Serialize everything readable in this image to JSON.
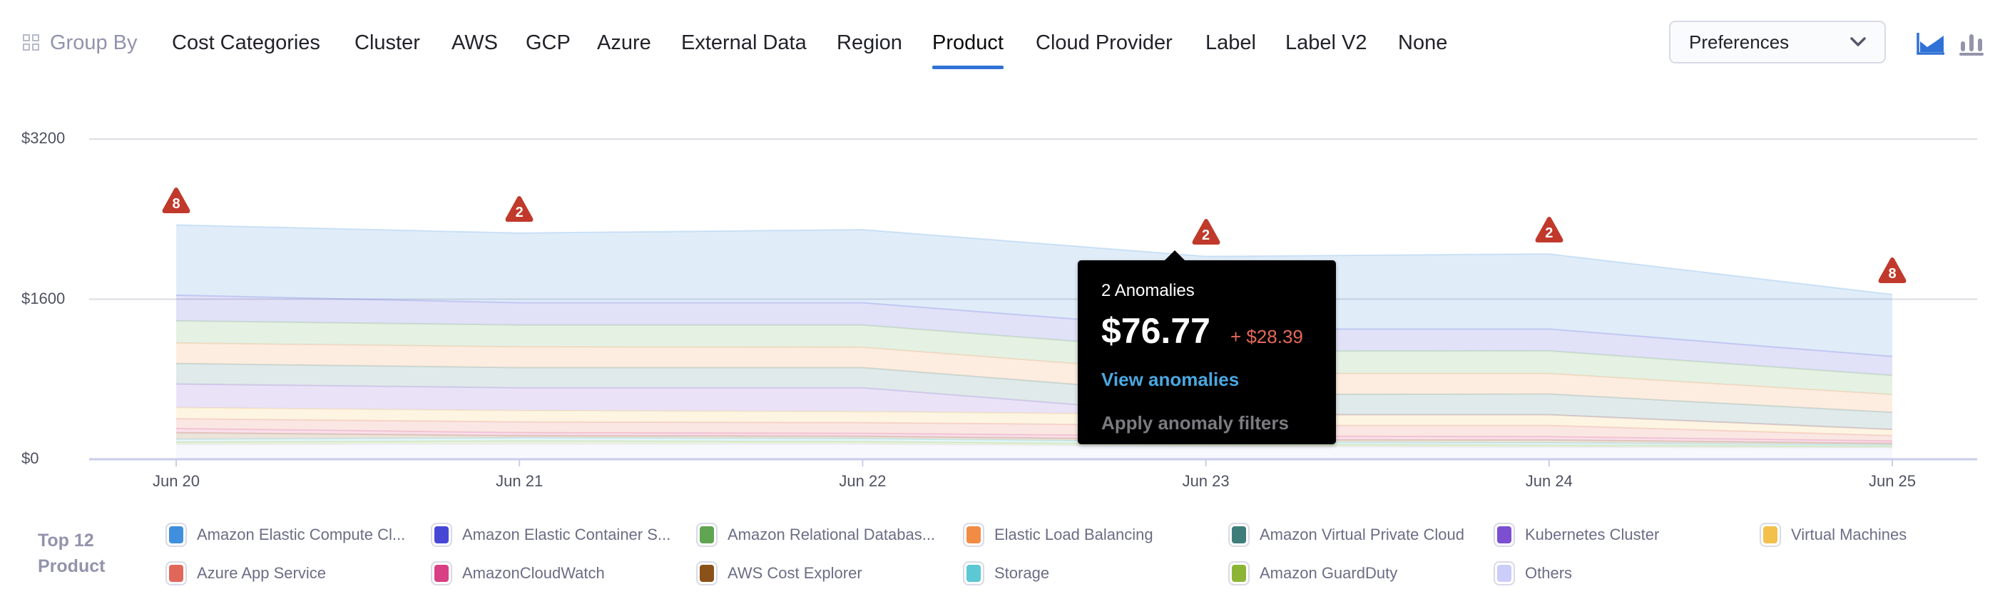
{
  "group_by": {
    "label": "Group By",
    "tabs": [
      {
        "label": "Cost Categories"
      },
      {
        "label": "Cluster"
      },
      {
        "label": "AWS"
      },
      {
        "label": "GCP"
      },
      {
        "label": "Azure"
      },
      {
        "label": "External Data"
      },
      {
        "label": "Region"
      },
      {
        "label": "Product",
        "active": true
      },
      {
        "label": "Cloud Provider"
      },
      {
        "label": "Label"
      },
      {
        "label": "Label V2"
      },
      {
        "label": "None"
      }
    ]
  },
  "preferences": {
    "label": "Preferences"
  },
  "chart_toggle": {
    "selected": "area-chart",
    "options": [
      "area-chart",
      "bar-chart"
    ],
    "accent": "#3071d6"
  },
  "tooltip": {
    "title": "2 Anomalies",
    "value": "$76.77",
    "delta": "+ $28.39",
    "view_link": "View anomalies",
    "apply_filters": "Apply anomaly filters"
  },
  "legend": {
    "title": "Top 12 Product"
  },
  "chart_data": {
    "type": "area",
    "stacked": true,
    "categories": [
      "Jun 20",
      "Jun 21",
      "Jun 22",
      "Jun 23",
      "Jun 24",
      "Jun 25"
    ],
    "ylim": [
      0,
      3200
    ],
    "yticks": [
      "$0",
      "$1600",
      "$3200"
    ],
    "ytick_values": [
      0,
      1600,
      3200
    ],
    "grid": true,
    "legend_position": "bottom",
    "series": [
      {
        "name": "Amazon Elastic Compute Cl...",
        "color": "#3f8fdc",
        "values": [
          702,
          697,
          731,
          726,
          750,
          619
        ]
      },
      {
        "name": "Amazon Elastic Container S...",
        "color": "#4747d6",
        "values": [
          257,
          222,
          222,
          222,
          219,
          190
        ]
      },
      {
        "name": "Amazon Relational Databas...",
        "color": "#5fa552",
        "values": [
          221,
          219,
          223,
          223,
          226,
          191
        ]
      },
      {
        "name": "Elastic Load Balancing",
        "color": "#f28c44",
        "values": [
          205,
          207,
          203,
          210,
          205,
          178
        ]
      },
      {
        "name": "Amazon Virtual Private Cloud",
        "color": "#3f7d7a",
        "values": [
          205,
          202,
          202,
          202,
          207,
          171
        ]
      },
      {
        "name": "Kubernetes Cluster",
        "color": "#7b4fd0",
        "values": [
          236,
          228,
          238,
          0,
          0,
          0
        ]
      },
      {
        "name": "Virtual Machines",
        "color": "#f2c04b",
        "values": [
          111,
          113,
          110,
          107,
          107,
          62
        ]
      },
      {
        "name": "Azure App Service",
        "color": "#e0675a",
        "values": [
          98,
          107,
          107,
          107,
          112,
          53
        ]
      },
      {
        "name": "AmazonCloudWatch",
        "color": "#d93f84",
        "values": [
          41,
          30,
          28,
          36,
          33,
          24
        ]
      },
      {
        "name": "AWS Cost Explorer",
        "color": "#8a5119",
        "values": [
          66,
          22,
          24,
          24,
          29,
          15
        ]
      },
      {
        "name": "Storage",
        "color": "#5bc8d4",
        "values": [
          29,
          31,
          31,
          23,
          24,
          15
        ]
      },
      {
        "name": "Amazon GuardDuty",
        "color": "#8db535",
        "values": [
          23,
          31,
          24,
          20,
          20,
          14
        ]
      },
      {
        "name": "Others",
        "color": "#cdcdfa",
        "values": [
          148,
          152,
          152,
          128,
          120,
          115
        ]
      }
    ],
    "anomalies": [
      {
        "date": "Jun 20",
        "count": "8"
      },
      {
        "date": "Jun 21",
        "count": "2"
      },
      {
        "date": "Jun 23",
        "count": "2"
      },
      {
        "date": "Jun 24",
        "count": "2"
      },
      {
        "date": "Jun 25",
        "count": "8"
      }
    ],
    "anomaly_color": "#c0392b"
  }
}
